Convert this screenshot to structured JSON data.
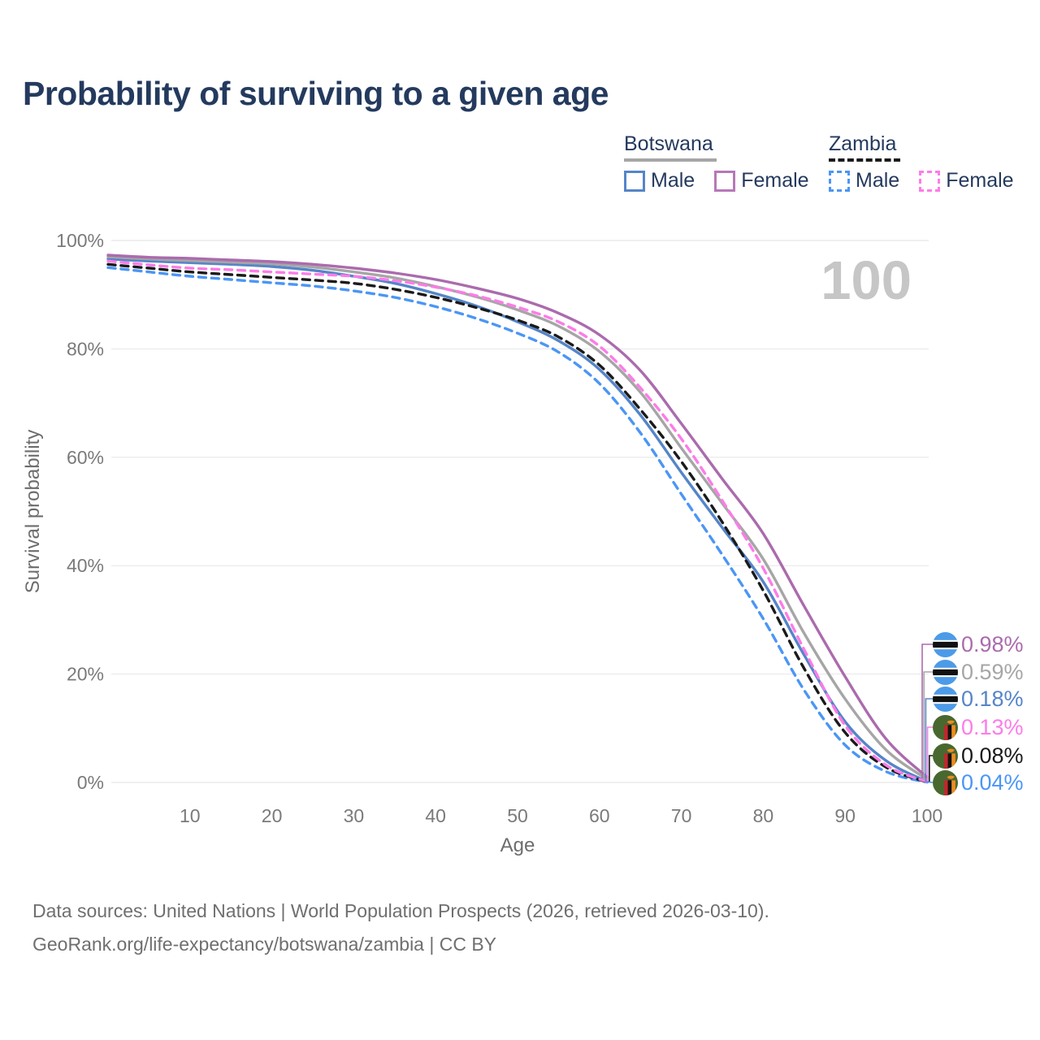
{
  "page": {
    "title": "Probability of surviving to a given age"
  },
  "legend": {
    "groups": [
      {
        "id": "botswana",
        "label": "Botswana",
        "line_style": "solid",
        "rule_color": "#a6a6a6",
        "items": [
          {
            "label": "Male",
            "color": "#5585c8",
            "style": "solid"
          },
          {
            "label": "Female",
            "color": "#b678b8",
            "style": "solid"
          }
        ]
      },
      {
        "id": "zambia",
        "label": "Zambia",
        "line_style": "dashed",
        "rule_color": "#1a1a1a",
        "items": [
          {
            "label": "Male",
            "color": "#4b96f5",
            "style": "dashed"
          },
          {
            "label": "Female",
            "color": "#fc7ce8",
            "style": "dashed"
          }
        ]
      }
    ]
  },
  "watermark": "100",
  "end_labels": [
    {
      "flag": "botswana",
      "value": "0.98%",
      "color": "#ab6bad"
    },
    {
      "flag": "botswana",
      "value": "0.59%",
      "color": "#a6a6a6"
    },
    {
      "flag": "botswana",
      "value": "0.18%",
      "color": "#5585c8"
    },
    {
      "flag": "zambia",
      "value": "0.13%",
      "color": "#fc7ce8"
    },
    {
      "flag": "zambia",
      "value": "0.08%",
      "color": "#1a1a1a"
    },
    {
      "flag": "zambia",
      "value": "0.04%",
      "color": "#4b96f5"
    }
  ],
  "footer": {
    "line1": "Data sources: United Nations | World Population Prospects (2026, retrieved 2026-03-10).",
    "line2": "GeoRank.org/life-expectancy/botswana/zambia | CC BY"
  },
  "chart_data": {
    "type": "line",
    "title": "Probability of surviving to a given age",
    "xlabel": "Age",
    "ylabel": "Survival probability",
    "xlim": [
      0,
      100
    ],
    "ylim": [
      0,
      100
    ],
    "xticks": [
      10,
      20,
      30,
      40,
      50,
      60,
      70,
      80,
      90,
      100
    ],
    "yticks": [
      0,
      20,
      40,
      60,
      80,
      100
    ],
    "ytick_suffix": "%",
    "grid": "horizontal",
    "legend_position": "top-right",
    "ages": [
      0,
      5,
      10,
      15,
      20,
      25,
      30,
      35,
      40,
      45,
      50,
      55,
      60,
      65,
      70,
      75,
      80,
      85,
      90,
      95,
      100
    ],
    "series": [
      {
        "name": "Botswana Female",
        "country": "Botswana",
        "sex": "Female",
        "color": "#ab6bad",
        "dash": "solid",
        "values": [
          97.3,
          96.9,
          96.7,
          96.4,
          96.1,
          95.6,
          94.9,
          94.0,
          92.8,
          91.2,
          89.3,
          86.6,
          82.6,
          76.0,
          66.2,
          56.0,
          45.9,
          32.5,
          19.5,
          8.0,
          0.98
        ]
      },
      {
        "name": "Botswana Both sexes",
        "country": "Botswana",
        "sex": "Both",
        "color": "#a6a6a6",
        "dash": "solid",
        "values": [
          97.0,
          96.6,
          96.3,
          96.0,
          95.7,
          95.1,
          94.2,
          93.1,
          91.5,
          89.6,
          87.2,
          84.2,
          79.5,
          72.0,
          61.7,
          51.5,
          41.2,
          27.5,
          15.4,
          6.0,
          0.59
        ]
      },
      {
        "name": "Botswana Male",
        "country": "Botswana",
        "sex": "Male",
        "color": "#5585c8",
        "dash": "solid",
        "values": [
          96.6,
          96.2,
          95.9,
          95.6,
          95.2,
          94.5,
          93.4,
          92.1,
          90.2,
          87.9,
          85.0,
          81.5,
          76.2,
          67.8,
          57.2,
          47.0,
          37.0,
          23.5,
          11.2,
          4.0,
          0.18
        ]
      },
      {
        "name": "Zambia Female",
        "country": "Zambia",
        "sex": "Female",
        "color": "#fc7ce8",
        "dash": "dashed",
        "values": [
          96.2,
          95.5,
          94.9,
          94.6,
          94.2,
          93.8,
          93.4,
          92.6,
          91.4,
          89.8,
          87.7,
          85.0,
          80.5,
          72.8,
          63.4,
          52.0,
          39.5,
          24.5,
          10.5,
          3.2,
          0.13
        ]
      },
      {
        "name": "Zambia Both sexes",
        "country": "Zambia",
        "sex": "Both",
        "color": "#1a1a1a",
        "dash": "dashed",
        "values": [
          95.6,
          94.9,
          94.2,
          93.7,
          93.2,
          92.7,
          92.1,
          91.0,
          89.5,
          87.6,
          85.3,
          82.2,
          77.0,
          68.8,
          59.2,
          48.0,
          35.4,
          21.0,
          9.2,
          2.8,
          0.08
        ]
      },
      {
        "name": "Zambia Male",
        "country": "Zambia",
        "sex": "Male",
        "color": "#4b96f5",
        "dash": "dashed",
        "values": [
          95.0,
          94.2,
          93.4,
          92.8,
          92.2,
          91.6,
          90.7,
          89.5,
          87.8,
          85.6,
          82.9,
          79.4,
          73.6,
          64.5,
          53.2,
          42.0,
          30.2,
          17.0,
          6.9,
          2.0,
          0.04
        ]
      }
    ],
    "end_values_pct": [
      0.98,
      0.59,
      0.18,
      0.13,
      0.08,
      0.04
    ],
    "age_indicator": 100
  }
}
